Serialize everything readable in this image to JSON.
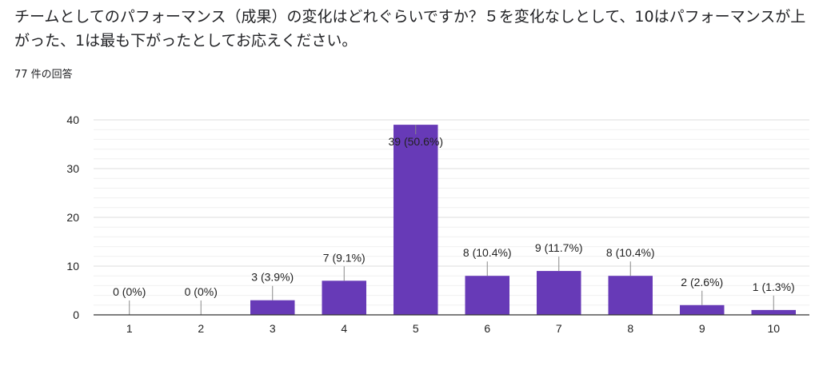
{
  "question": "チームとしてのパフォーマンス（成果）の変化はどれぐらいですか？５を変化なしとして、10はパフォーマンスが上がった、1は最も下がったとしてお応えください。",
  "response_count": "77 件の回答",
  "colors": {
    "bar": "#673ab7",
    "grid": "#e6e6e6",
    "axis": "#333333"
  },
  "chart_data": {
    "type": "bar",
    "title": "",
    "xlabel": "",
    "ylabel": "",
    "categories": [
      "1",
      "2",
      "3",
      "4",
      "5",
      "6",
      "7",
      "8",
      "9",
      "10"
    ],
    "values": [
      0,
      0,
      3,
      7,
      39,
      8,
      9,
      8,
      2,
      1
    ],
    "data_labels": [
      "0 (0%)",
      "0 (0%)",
      "3 (3.9%)",
      "7 (9.1%)",
      "39 (50.6%)",
      "8 (10.4%)",
      "9 (11.7%)",
      "8 (10.4%)",
      "2 (2.6%)",
      "1 (1.3%)"
    ],
    "ylim": [
      0,
      40
    ],
    "yticks": [
      0,
      10,
      20,
      30,
      40
    ],
    "grid": true,
    "legend": "none"
  }
}
